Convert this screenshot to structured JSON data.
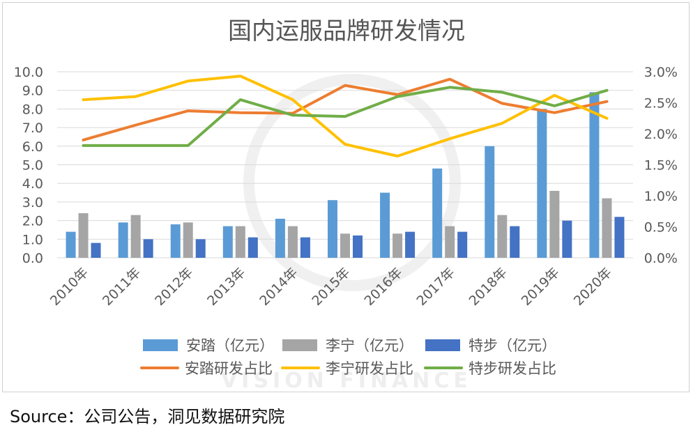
{
  "source": "Source：公司公告，洞见数据研究院",
  "watermark": "VISION FINANCE",
  "chart_data": {
    "type": "bar",
    "title": "国内运服品牌研发情况",
    "categories": [
      "2010年",
      "2011年",
      "2012年",
      "2013年",
      "2014年",
      "2015年",
      "2016年",
      "2017年",
      "2018年",
      "2019年",
      "2020年"
    ],
    "y_left": {
      "ticks": [
        "0.0",
        "1.0",
        "2.0",
        "3.0",
        "4.0",
        "5.0",
        "6.0",
        "7.0",
        "8.0",
        "9.0",
        "10.0"
      ],
      "ylim": [
        0,
        10
      ]
    },
    "y_right": {
      "ticks": [
        "0.0%",
        "0.5%",
        "1.0%",
        "1.5%",
        "2.0%",
        "2.5%",
        "3.0%"
      ],
      "ylim": [
        0,
        3.0
      ]
    },
    "grid": true,
    "legend_position": "bottom",
    "bar_series": [
      {
        "name": "安踏（亿元）",
        "color": "#5b9bd5",
        "values": [
          1.4,
          1.9,
          1.8,
          1.7,
          2.1,
          3.1,
          3.5,
          4.8,
          6.0,
          8.0,
          8.9
        ]
      },
      {
        "name": "李宁（亿元）",
        "color": "#a5a5a5",
        "values": [
          2.4,
          2.3,
          1.9,
          1.7,
          1.7,
          1.3,
          1.3,
          1.7,
          2.3,
          3.6,
          3.2
        ]
      },
      {
        "name": "特步（亿元）",
        "color": "#4472c4",
        "values": [
          0.8,
          1.0,
          1.0,
          1.1,
          1.1,
          1.2,
          1.4,
          1.4,
          1.7,
          2.0,
          2.2
        ]
      }
    ],
    "line_series": [
      {
        "name": "安踏研发占比",
        "color": "#ed7d31",
        "values": [
          1.9,
          2.14,
          2.37,
          2.34,
          2.33,
          2.78,
          2.63,
          2.88,
          2.49,
          2.34,
          2.52
        ]
      },
      {
        "name": "李宁研发占比",
        "color": "#ffc000",
        "values": [
          2.55,
          2.6,
          2.85,
          2.93,
          2.55,
          1.83,
          1.64,
          1.92,
          2.17,
          2.62,
          2.25
        ]
      },
      {
        "name": "特步研发占比",
        "color": "#70ad47",
        "values": [
          1.81,
          1.81,
          1.81,
          2.55,
          2.3,
          2.28,
          2.6,
          2.75,
          2.67,
          2.45,
          2.7
        ]
      }
    ]
  }
}
